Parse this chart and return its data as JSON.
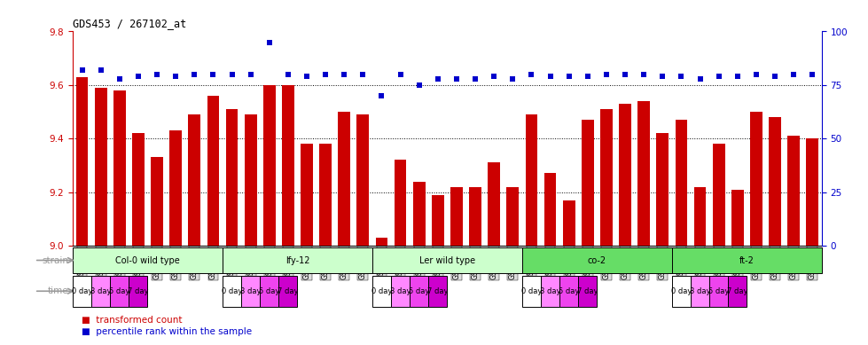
{
  "title": "GDS453 / 267102_at",
  "samples": [
    "GSM8827",
    "GSM8828",
    "GSM8829",
    "GSM8830",
    "GSM8831",
    "GSM8832",
    "GSM8833",
    "GSM8834",
    "GSM8835",
    "GSM8836",
    "GSM8837",
    "GSM8838",
    "GSM8839",
    "GSM8840",
    "GSM8841",
    "GSM8842",
    "GSM8843",
    "GSM8844",
    "GSM8845",
    "GSM8846",
    "GSM8847",
    "GSM8848",
    "GSM8849",
    "GSM8850",
    "GSM8851",
    "GSM8852",
    "GSM8853",
    "GSM8854",
    "GSM8855",
    "GSM8856",
    "GSM8857",
    "GSM8858",
    "GSM8859",
    "GSM8860",
    "GSM8861",
    "GSM8862",
    "GSM8863",
    "GSM8864",
    "GSM8865",
    "GSM8866"
  ],
  "bar_values": [
    9.63,
    9.59,
    9.58,
    9.42,
    9.33,
    9.43,
    9.49,
    9.56,
    9.51,
    9.49,
    9.6,
    9.6,
    9.38,
    9.38,
    9.5,
    9.49,
    9.03,
    9.32,
    9.24,
    9.19,
    9.22,
    9.22,
    9.31,
    9.22,
    9.49,
    9.27,
    9.17,
    9.47,
    9.51,
    9.53,
    9.54,
    9.42,
    9.47,
    9.22,
    9.38,
    9.21,
    9.5,
    9.48,
    9.41,
    9.4
  ],
  "percentile_values": [
    82,
    82,
    78,
    79,
    80,
    79,
    80,
    80,
    80,
    80,
    95,
    80,
    79,
    80,
    80,
    80,
    70,
    80,
    75,
    78,
    78,
    78,
    79,
    78,
    80,
    79,
    79,
    79,
    80,
    80,
    80,
    79,
    79,
    78,
    79,
    79,
    80,
    79,
    80,
    80
  ],
  "ylim_left": [
    9.0,
    9.8
  ],
  "ylim_right": [
    0,
    100
  ],
  "bar_color": "#cc0000",
  "dot_color": "#0000cc",
  "bar_width": 0.65,
  "strains": [
    {
      "label": "Col-0 wild type",
      "start": 0,
      "end": 8,
      "color": "#ccffcc"
    },
    {
      "label": "lfy-12",
      "start": 8,
      "end": 16,
      "color": "#ccffcc"
    },
    {
      "label": "Ler wild type",
      "start": 16,
      "end": 24,
      "color": "#ccffcc"
    },
    {
      "label": "co-2",
      "start": 24,
      "end": 32,
      "color": "#66dd66"
    },
    {
      "label": "ft-2",
      "start": 32,
      "end": 40,
      "color": "#66dd66"
    }
  ],
  "time_labels": [
    "0 day",
    "3 day",
    "5 day",
    "7 day"
  ],
  "time_colors": [
    "#ffffff",
    "#ff88ff",
    "#ee44ee",
    "#cc00cc"
  ],
  "grid_yticks_left": [
    9.0,
    9.2,
    9.4,
    9.6,
    9.8
  ],
  "grid_yticks_right": [
    0,
    25,
    50,
    75,
    100
  ],
  "dotted_lines": [
    9.2,
    9.4,
    9.6
  ],
  "bg_color": "#ffffff",
  "label_color_left": "#cc0000",
  "label_color_right": "#0000cc",
  "xtick_bg": "#dddddd",
  "strain_label_color": "#999999",
  "time_label_color": "#999999"
}
